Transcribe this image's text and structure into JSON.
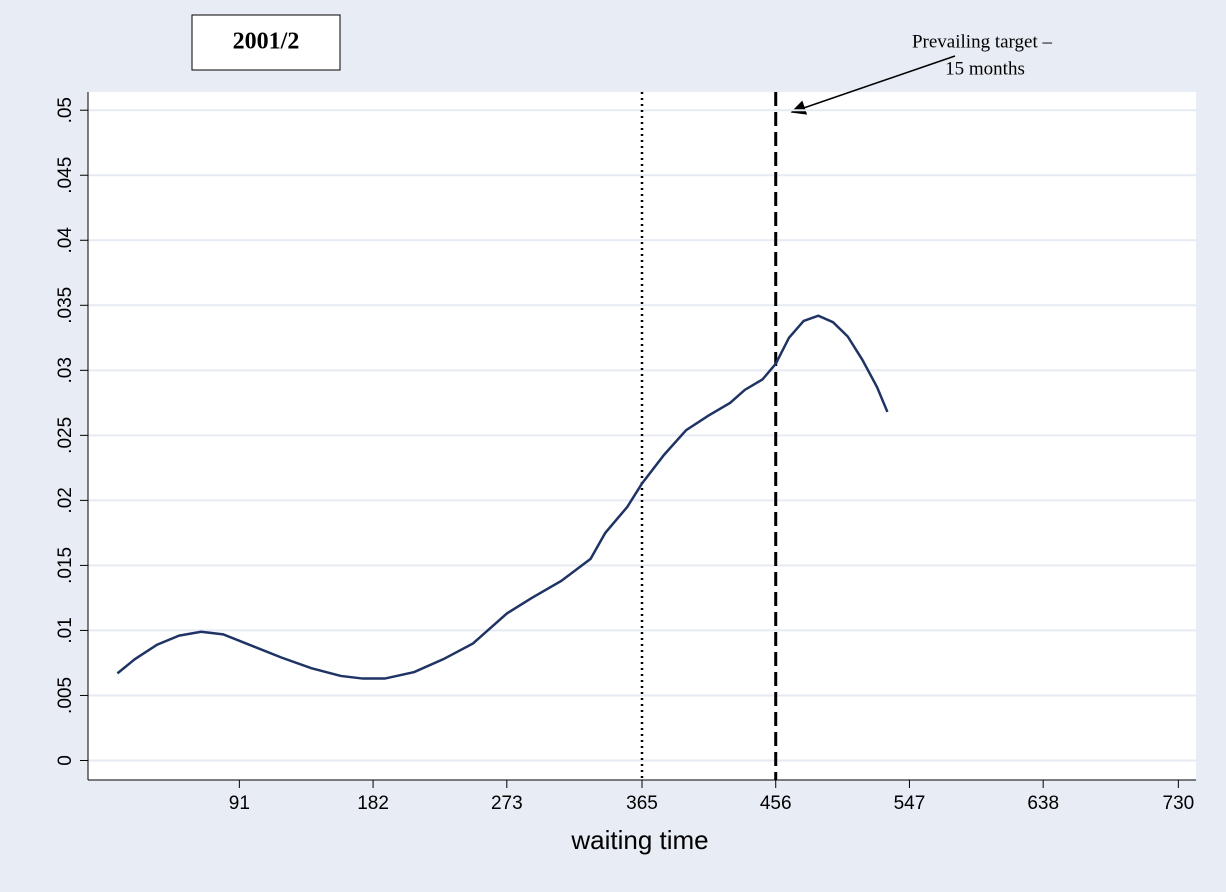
{
  "chart_data": {
    "type": "line",
    "title": "2001/2",
    "annotation": [
      "Prevailing target –",
      "15 months"
    ],
    "xlabel": "waiting time",
    "xlim": [
      -12,
      742
    ],
    "ylim": [
      -0.0015,
      0.0514
    ],
    "xticks": [
      91,
      182,
      273,
      365,
      456,
      547,
      638,
      730
    ],
    "yticks": [
      0,
      {
        "value": 0.005,
        "label": ".005"
      },
      {
        "value": 0.01,
        "label": ".01"
      },
      {
        "value": 0.015,
        "label": ".015"
      },
      {
        "value": 0.02,
        "label": ".02"
      },
      {
        "value": 0.025,
        "label": ".025"
      },
      {
        "value": 0.03,
        "label": ".03"
      },
      {
        "value": 0.035,
        "label": ".035"
      },
      {
        "value": 0.04,
        "label": ".04"
      },
      {
        "value": 0.045,
        "label": ".045"
      },
      {
        "value": 0.05,
        "label": ".05"
      }
    ],
    "grid": true,
    "reference_lines": [
      {
        "x": 365,
        "style": "dotted"
      },
      {
        "x": 456,
        "style": "dashed"
      }
    ],
    "series": [
      {
        "color": "#1f3464",
        "x": [
          8,
          20,
          35,
          50,
          65,
          80,
          100,
          120,
          140,
          160,
          175,
          190,
          210,
          230,
          250,
          273,
          290,
          310,
          330,
          340,
          355,
          365,
          380,
          395,
          410,
          425,
          435,
          447,
          456,
          465,
          475,
          485,
          495,
          505,
          515,
          525,
          532
        ],
        "values": [
          0.0067,
          0.0078,
          0.0089,
          0.0096,
          0.0099,
          0.0097,
          0.0088,
          0.0079,
          0.0071,
          0.0065,
          0.0063,
          0.0063,
          0.0068,
          0.0078,
          0.009,
          0.0113,
          0.0125,
          0.0138,
          0.0155,
          0.0175,
          0.0195,
          0.0213,
          0.0235,
          0.0254,
          0.0265,
          0.0275,
          0.0285,
          0.0293,
          0.0305,
          0.0325,
          0.0338,
          0.0342,
          0.0337,
          0.0326,
          0.0308,
          0.0287,
          0.0268
        ]
      }
    ]
  }
}
